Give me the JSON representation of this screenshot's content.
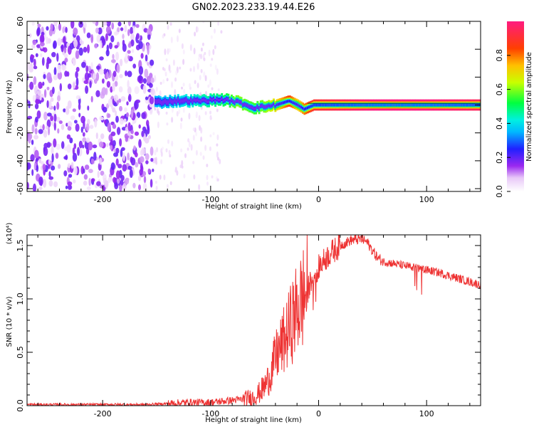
{
  "page_title": "GN02.2023.233.19.44.E26",
  "colors": {
    "snr_line": "#ee3333",
    "spectrum_core": "#dd1166",
    "spectrum_noise": "#7a10f0"
  },
  "chart_data": [
    {
      "type": "heatmap",
      "title": "GN02.2023.233.19.44.E26",
      "xlabel": "Height of straight line (km)",
      "ylabel": "Frequency (Hz)",
      "xlim": [
        -270,
        150
      ],
      "ylim": [
        -62,
        60
      ],
      "x_ticks": [
        -200,
        -100,
        0,
        100
      ],
      "x_tick_labels": [
        "-200",
        "-100",
        "0",
        "100"
      ],
      "y_ticks": [
        60,
        40,
        20,
        0,
        -20,
        -40,
        -60
      ],
      "y_tick_labels": [
        "60",
        "40",
        "20",
        "0",
        "-20",
        "-40",
        "-60"
      ],
      "colorbar": {
        "label": "Normalized spectral amplitude",
        "range": [
          0,
          1
        ],
        "ticks": [
          0.0,
          0.2,
          0.4,
          0.6,
          0.8
        ],
        "tick_labels": [
          "0.0",
          "0.2",
          "0.4",
          "0.6",
          "0.8"
        ]
      },
      "noise_region": {
        "x_range": [
          -270,
          -152
        ],
        "frequency_range": [
          -60,
          60
        ],
        "amplitude_range": [
          0.05,
          0.2
        ]
      },
      "sparse_region": {
        "x_range": [
          -152,
          -90
        ],
        "amplitude_range": [
          0.02,
          0.08
        ]
      },
      "signal_track": [
        {
          "x": -152,
          "freq": 2,
          "amp": 0.35
        },
        {
          "x": -130,
          "freq": 3,
          "amp": 0.4
        },
        {
          "x": -110,
          "freq": 3,
          "amp": 0.45
        },
        {
          "x": -90,
          "freq": 4,
          "amp": 0.5
        },
        {
          "x": -75,
          "freq": 2,
          "amp": 0.6
        },
        {
          "x": -60,
          "freq": -2,
          "amp": 0.55
        },
        {
          "x": -50,
          "freq": -1,
          "amp": 0.6
        },
        {
          "x": -40,
          "freq": 0,
          "amp": 0.7
        },
        {
          "x": -28,
          "freq": 3,
          "amp": 0.85
        },
        {
          "x": -20,
          "freq": 0,
          "amp": 0.7
        },
        {
          "x": -14,
          "freq": -3,
          "amp": 0.8
        },
        {
          "x": -5,
          "freq": 0,
          "amp": 0.9
        },
        {
          "x": 50,
          "freq": 0,
          "amp": 1.0
        },
        {
          "x": 100,
          "freq": 0,
          "amp": 1.0
        },
        {
          "x": 150,
          "freq": 0,
          "amp": 0.95
        }
      ]
    },
    {
      "type": "line",
      "xlabel": "Height of straight line (km)",
      "ylabel": "SNR (10 * v/v)",
      "scale_note": "(x10⁴)",
      "xlim": [
        -270,
        150
      ],
      "ylim": [
        0,
        1.6
      ],
      "x_ticks": [
        -200,
        -100,
        0,
        100
      ],
      "x_tick_labels": [
        "-200",
        "-100",
        "0",
        "100"
      ],
      "y_ticks": [
        0.0,
        0.5,
        1.0,
        1.5
      ],
      "y_tick_labels": [
        "0.0",
        "0.5",
        "1.0",
        "1.5"
      ],
      "series": [
        {
          "color": "#ee3333",
          "x": [
            -270,
            -240,
            -200,
            -160,
            -140,
            -120,
            -100,
            -80,
            -70,
            -60,
            -55,
            -50,
            -45,
            -40,
            -35,
            -30,
            -25,
            -20,
            -15,
            -10,
            0,
            10,
            20,
            30,
            40,
            45,
            50,
            55,
            60,
            70,
            80,
            90,
            100,
            110,
            120,
            130,
            140,
            150
          ],
          "y": [
            0.01,
            0.01,
            0.01,
            0.01,
            0.02,
            0.03,
            0.03,
            0.05,
            0.06,
            0.08,
            0.12,
            0.18,
            0.28,
            0.45,
            0.55,
            0.65,
            0.78,
            0.9,
            1.0,
            1.1,
            1.3,
            1.42,
            1.5,
            1.55,
            1.56,
            1.53,
            1.45,
            1.38,
            1.35,
            1.33,
            1.31,
            1.29,
            1.27,
            1.25,
            1.22,
            1.19,
            1.16,
            1.13
          ]
        }
      ]
    }
  ]
}
